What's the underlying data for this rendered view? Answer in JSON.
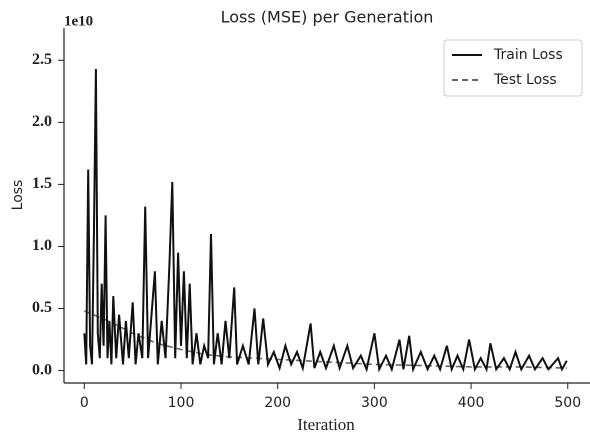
{
  "chart_data": {
    "type": "line",
    "title": "Loss (MSE) per Generation",
    "x_label": "Iteration",
    "y_label": "Loss",
    "y_offset": "1e10",
    "xlim": [
      -21,
      523
    ],
    "ylim": [
      -0.1,
      2.76
    ],
    "xticks": [
      0,
      100,
      200,
      300,
      400,
      500
    ],
    "yticks": [
      {
        "value": 0,
        "label": "0.0"
      },
      0.5,
      {
        "value": 1,
        "label": "1.0"
      },
      1.5,
      {
        "value": 2,
        "label": "2.0"
      },
      2.5
    ],
    "legend": "upper right",
    "series": [
      {
        "name": "Train Loss",
        "color": "#111111",
        "dash": "solid",
        "x": [
          0,
          2,
          4,
          6,
          8,
          10,
          12,
          14,
          16,
          18,
          20,
          22,
          24,
          26,
          28,
          30,
          33,
          36,
          40,
          43,
          46,
          50,
          53,
          56,
          60,
          63,
          66,
          70,
          73,
          76,
          80,
          84,
          88,
          91,
          94,
          97,
          100,
          103,
          106,
          109,
          112,
          116,
          120,
          124,
          128,
          131,
          134,
          138,
          142,
          146,
          150,
          155,
          158,
          164,
          170,
          176,
          180,
          185,
          190,
          196,
          202,
          208,
          214,
          220,
          226,
          234,
          238,
          244,
          250,
          258,
          264,
          272,
          278,
          286,
          292,
          300,
          305,
          312,
          318,
          326,
          330,
          336,
          340,
          348,
          355,
          362,
          368,
          375,
          380,
          386,
          392,
          398,
          404,
          410,
          416,
          420,
          426,
          434,
          440,
          446,
          452,
          460,
          466,
          474,
          480,
          490,
          494,
          499
        ],
        "values": [
          0.3,
          0.05,
          1.62,
          0.2,
          0.05,
          1.15,
          2.43,
          0.3,
          0.1,
          0.7,
          0.2,
          1.25,
          0.1,
          0.4,
          0.05,
          0.6,
          0.1,
          0.45,
          0.05,
          0.4,
          0.1,
          0.55,
          0.05,
          0.3,
          0.1,
          1.32,
          0.1,
          0.5,
          0.8,
          0.05,
          0.4,
          0.1,
          0.85,
          1.52,
          0.1,
          0.95,
          0.2,
          0.8,
          0.1,
          0.7,
          0.05,
          0.3,
          0.05,
          0.2,
          0.1,
          1.1,
          0.05,
          0.3,
          0.05,
          0.4,
          0.1,
          0.67,
          0.05,
          0.2,
          0.05,
          0.5,
          0.05,
          0.42,
          0.05,
          0.15,
          0.02,
          0.2,
          0.05,
          0.15,
          0.02,
          0.38,
          0.02,
          0.15,
          0.02,
          0.2,
          0.02,
          0.2,
          0.02,
          0.12,
          0.01,
          0.3,
          0.01,
          0.12,
          0.01,
          0.25,
          0.01,
          0.28,
          0.01,
          0.15,
          0.01,
          0.12,
          0.01,
          0.2,
          0.01,
          0.12,
          0.01,
          0.25,
          0.01,
          0.1,
          0.01,
          0.22,
          0.01,
          0.1,
          0.01,
          0.15,
          0.01,
          0.12,
          0.01,
          0.1,
          0.01,
          0.1,
          0.01,
          0.08
        ]
      },
      {
        "name": "Test Loss",
        "color": "#666666",
        "dash": "dashed",
        "x": [
          0,
          25,
          50,
          75,
          100,
          125,
          150,
          175,
          200,
          250,
          300,
          350,
          400,
          450,
          499
        ],
        "values": [
          0.48,
          0.4,
          0.3,
          0.22,
          0.17,
          0.13,
          0.11,
          0.1,
          0.09,
          0.07,
          0.05,
          0.04,
          0.03,
          0.03,
          0.02
        ]
      }
    ]
  }
}
